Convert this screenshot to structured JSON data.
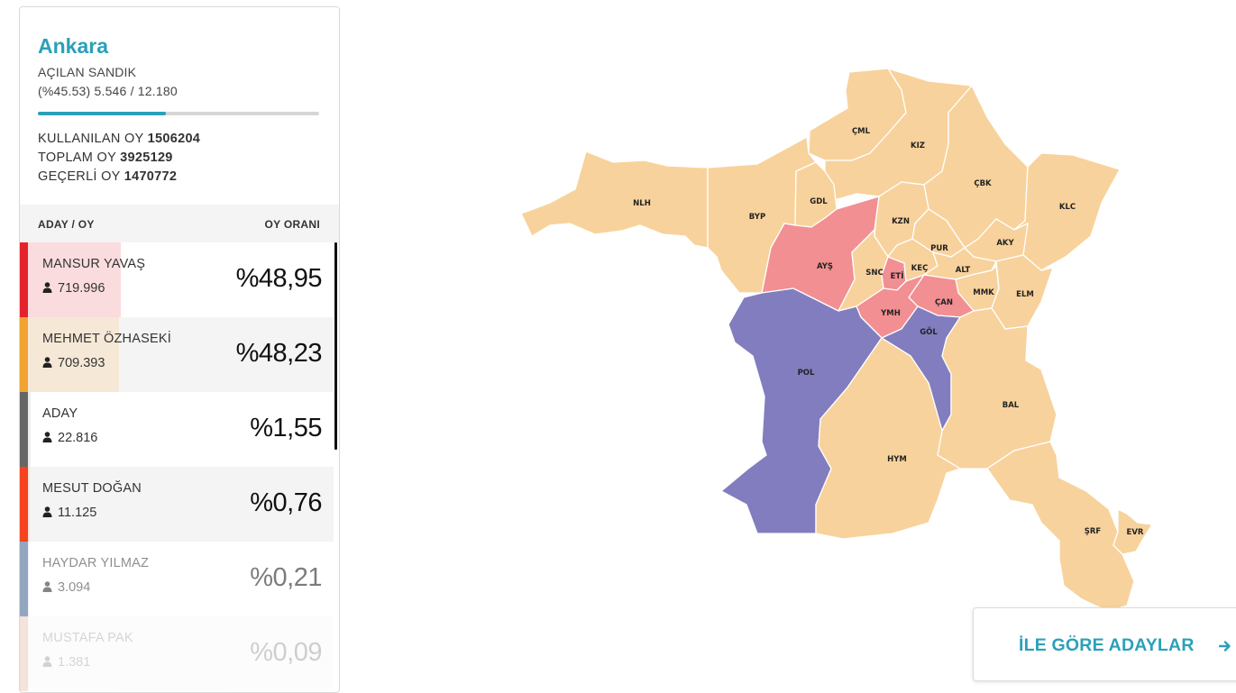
{
  "summary": {
    "city": "Ankara",
    "opened_label": "AÇILAN SANDIK",
    "opened_value": "(%45.53) 5.546 / 12.180",
    "opened_percent": 45.53,
    "used_label": "KULLANILAN OY",
    "used_value": "1506204",
    "total_label": "TOPLAM OY",
    "total_value": "3925129",
    "valid_label": "GEÇERLİ OY",
    "valid_value": "1470772"
  },
  "table": {
    "col_candidate": "ADAY / OY",
    "col_share": "OY ORANI"
  },
  "candidates": [
    {
      "name": "MANSUR YAVAŞ",
      "votes": "719.996",
      "pct": "%48,95",
      "share": 48.95,
      "color": "#e5232d",
      "tint": "#fbdcde"
    },
    {
      "name": "MEHMET ÖZHASEKİ",
      "votes": "709.393",
      "pct": "%48,23",
      "share": 48.23,
      "color": "#f0a533",
      "tint": "#f6e8d6"
    },
    {
      "name": "ADAY",
      "votes": "22.816",
      "pct": "%1,55",
      "share": 1.55,
      "color": "#666666",
      "tint": "#eeeeee"
    },
    {
      "name": "MESUT DOĞAN",
      "votes": "11.125",
      "pct": "%0,76",
      "share": 0.76,
      "color": "#f4431e",
      "tint": "#fde2dc"
    },
    {
      "name": "HAYDAR YILMAZ",
      "votes": "3.094",
      "pct": "%0,21",
      "share": 0.21,
      "color": "#3b5f8e",
      "tint": "#dde5ef"
    },
    {
      "name": "MUSTAFA PAK",
      "votes": "1.381",
      "pct": "%0,09",
      "share": 0.09,
      "color": "#c87a4a",
      "tint": "#f4e3d8"
    }
  ],
  "map": {
    "colors": {
      "peach": "#f8d29c",
      "red": "#f28f92",
      "purple": "#827dbe"
    },
    "districts": [
      {
        "code": "ÇML",
        "name": "çamlıdere",
        "color": "peach"
      },
      {
        "code": "KIZ",
        "name": "kızılcahamam",
        "color": "peach"
      },
      {
        "code": "NLH",
        "name": "nallıhan",
        "color": "peach"
      },
      {
        "code": "BYP",
        "name": "beypazarı",
        "color": "peach"
      },
      {
        "code": "GDL",
        "name": "güdül",
        "color": "peach"
      },
      {
        "code": "ÇBK",
        "name": "çubuk",
        "color": "peach"
      },
      {
        "code": "KLC",
        "name": "kalecik",
        "color": "peach"
      },
      {
        "code": "KZN",
        "name": "kazan",
        "color": "peach"
      },
      {
        "code": "AYŞ",
        "name": "ayaş",
        "color": "red"
      },
      {
        "code": "PUR",
        "name": "pursaklar",
        "color": "peach"
      },
      {
        "code": "AKY",
        "name": "akyurt",
        "color": "peach"
      },
      {
        "code": "SNC",
        "name": "sincan",
        "color": "peach"
      },
      {
        "code": "ETİ",
        "name": "etimesgut",
        "color": "red"
      },
      {
        "code": "KEÇ",
        "name": "keçiören",
        "color": "peach"
      },
      {
        "code": "ALT",
        "name": "altındağ",
        "color": "peach"
      },
      {
        "code": "MMK",
        "name": "mamak",
        "color": "peach"
      },
      {
        "code": "ELM",
        "name": "elmadağ",
        "color": "peach"
      },
      {
        "code": "ÇAN",
        "name": "çankaya",
        "color": "red"
      },
      {
        "code": "YMH",
        "name": "yenimahalle",
        "color": "red"
      },
      {
        "code": "GÖL",
        "name": "gölbaşı",
        "color": "purple"
      },
      {
        "code": "POL",
        "name": "polatlı",
        "color": "purple"
      },
      {
        "code": "BAL",
        "name": "bala",
        "color": "peach"
      },
      {
        "code": "HYM",
        "name": "haymana",
        "color": "peach"
      },
      {
        "code": "ŞRF",
        "name": "şereflikoçhisar",
        "color": "peach"
      },
      {
        "code": "EVR",
        "name": "evren",
        "color": "peach"
      }
    ]
  },
  "cta": {
    "label": "İLE GÖRE ADAYLAR",
    "icon": "arrow-right-icon"
  }
}
